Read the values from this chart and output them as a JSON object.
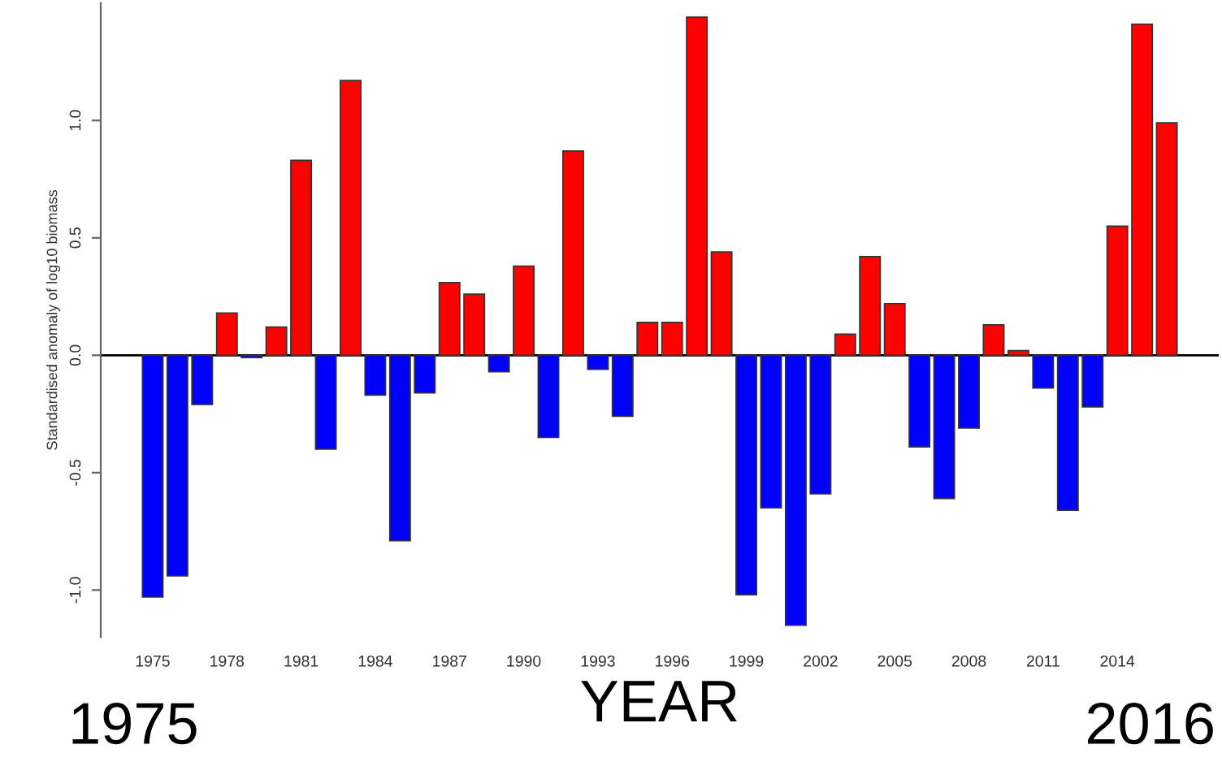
{
  "chart_data": {
    "type": "bar",
    "ylabel": "Standardised anomaly of log10 biomass",
    "xlabel": "YEAR",
    "categories": [
      "1975",
      null,
      null,
      "1978",
      null,
      null,
      "1981",
      null,
      null,
      "1984",
      null,
      null,
      "1987",
      null,
      null,
      "1990",
      null,
      null,
      "1993",
      null,
      null,
      "1996",
      null,
      null,
      "1999",
      null,
      null,
      "2002",
      null,
      null,
      "2005",
      null,
      null,
      "2008",
      null,
      null,
      "2011",
      null,
      null,
      "2014",
      null,
      null
    ],
    "values": [
      -1.03,
      -0.94,
      -0.21,
      0.18,
      -0.01,
      0.12,
      0.83,
      -0.4,
      1.17,
      -0.17,
      -0.79,
      -0.16,
      0.31,
      0.26,
      -0.07,
      0.38,
      -0.35,
      0.87,
      -0.06,
      -0.26,
      0.14,
      0.14,
      1.44,
      0.44,
      -1.02,
      -0.65,
      -1.15,
      -0.59,
      0.09,
      0.42,
      0.22,
      -0.39,
      -0.61,
      -0.31,
      0.13,
      0.02,
      -0.14,
      -0.66,
      -0.22,
      0.55,
      1.41,
      0.99
    ],
    "colors": [
      "#0000ff",
      "#0000ff",
      "#0000ff",
      "#ff0000",
      "#0000ff",
      "#ff0000",
      "#ff0000",
      "#0000ff",
      "#ff0000",
      "#0000ff",
      "#0000ff",
      "#0000ff",
      "#ff0000",
      "#ff0000",
      "#0000ff",
      "#ff0000",
      "#0000ff",
      "#ff0000",
      "#0000ff",
      "#0000ff",
      "#ff0000",
      "#ff0000",
      "#ff0000",
      "#ff0000",
      "#0000ff",
      "#0000ff",
      "#0000ff",
      "#0000ff",
      "#ff0000",
      "#ff0000",
      "#ff0000",
      "#0000ff",
      "#0000ff",
      "#0000ff",
      "#ff0000",
      "#ff0000",
      "#0000ff",
      "#0000ff",
      "#0000ff",
      "#ff0000",
      "#ff0000",
      "#ff0000"
    ],
    "ylim": [
      -1.2,
      1.5
    ],
    "yticks": [
      {
        "value": -1.0,
        "label": "-1.0"
      },
      {
        "value": -0.5,
        "label": "-0.5"
      },
      {
        "value": 0.0,
        "label": "0.0"
      },
      {
        "value": 0.5,
        "label": "0.5"
      },
      {
        "value": 1.0,
        "label": "1.0"
      }
    ],
    "ref_lines": [
      {
        "axis": "y",
        "value": 0,
        "color": "#000000"
      }
    ],
    "annotations": [
      "1975",
      "2016"
    ],
    "grid": false,
    "legend": false
  }
}
